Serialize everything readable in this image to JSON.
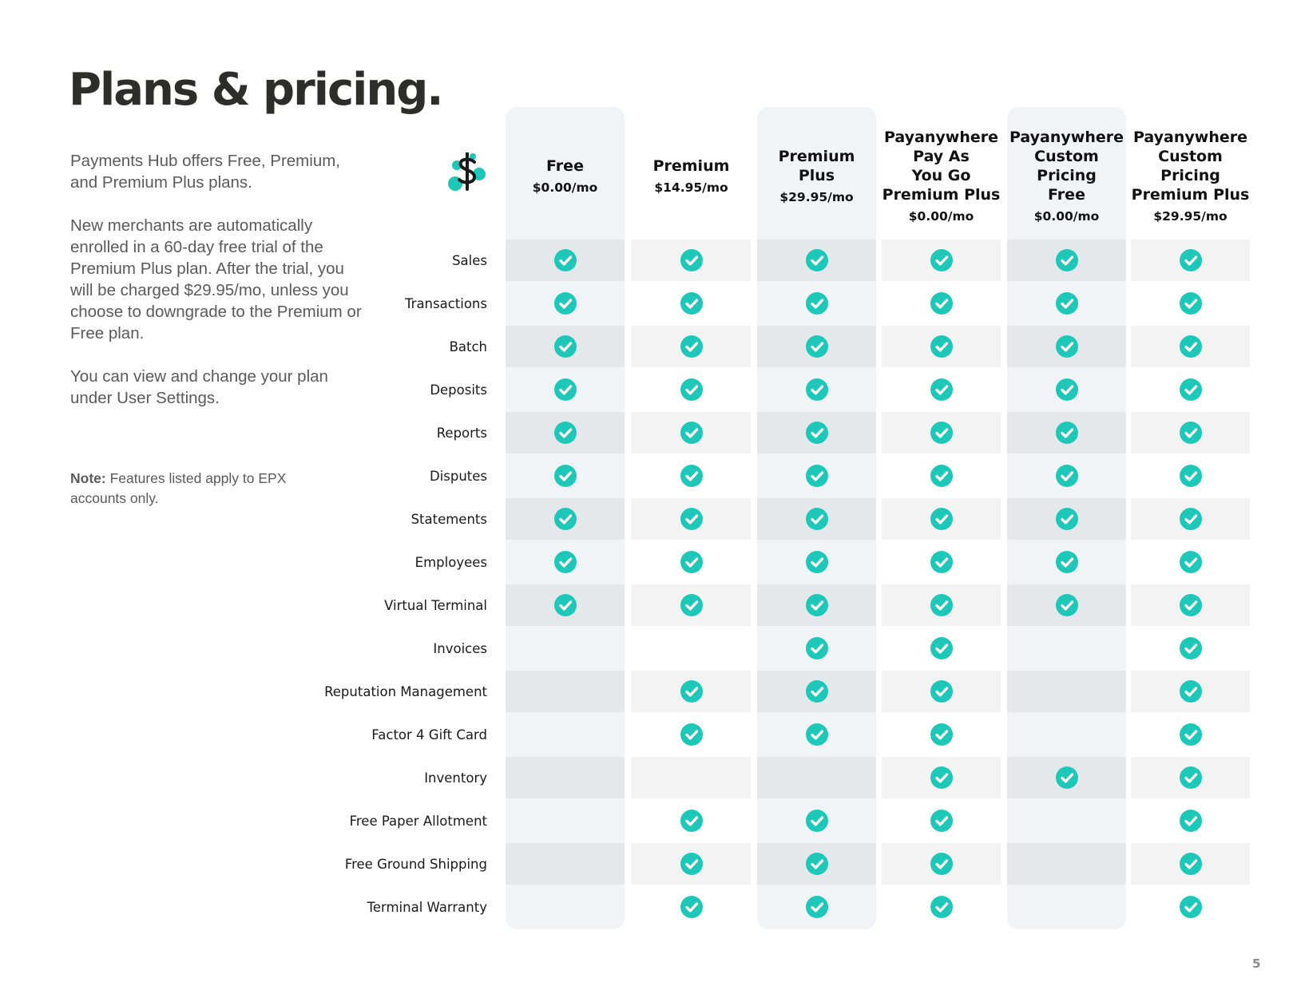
{
  "title": "Plans & pricing.",
  "intro": {
    "p1": "Payments Hub offers Free, Premium, and Premium Plus plans.",
    "p2": "New merchants are automatically enrolled in a 60-day free trial of the Premium Plus plan. After the trial, you will be charged $29.95/mo, unless you choose to downgrade to the Premium or Free plan.",
    "p3": "You can view and change your plan under User Settings."
  },
  "note": {
    "label": "Note:",
    "text": " Features listed apply to EPX accounts only."
  },
  "page_number": "5",
  "logo_icon": "dollar-molecule-icon",
  "colors": {
    "check": "#1ec8b8",
    "title": "#2d2d2b",
    "body_text": "#5a5a5a"
  },
  "plans": [
    {
      "name": "Free",
      "price": "$0.00/mo"
    },
    {
      "name": "Premium",
      "price": "$14.95/mo"
    },
    {
      "name": "Premium\nPlus",
      "price": "$29.95/mo"
    },
    {
      "name": "Payanywhere\nPay As\nYou Go\nPremium Plus",
      "price": "$0.00/mo"
    },
    {
      "name": "Payanywhere\nCustom\nPricing\nFree",
      "price": "$0.00/mo"
    },
    {
      "name": "Payanywhere\nCustom\nPricing\nPremium Plus",
      "price": "$29.95/mo"
    }
  ],
  "features": [
    {
      "label": "Sales",
      "included": [
        true,
        true,
        true,
        true,
        true,
        true
      ]
    },
    {
      "label": "Transactions",
      "included": [
        true,
        true,
        true,
        true,
        true,
        true
      ]
    },
    {
      "label": "Batch",
      "included": [
        true,
        true,
        true,
        true,
        true,
        true
      ]
    },
    {
      "label": "Deposits",
      "included": [
        true,
        true,
        true,
        true,
        true,
        true
      ]
    },
    {
      "label": "Reports",
      "included": [
        true,
        true,
        true,
        true,
        true,
        true
      ]
    },
    {
      "label": "Disputes",
      "included": [
        true,
        true,
        true,
        true,
        true,
        true
      ]
    },
    {
      "label": "Statements",
      "included": [
        true,
        true,
        true,
        true,
        true,
        true
      ]
    },
    {
      "label": "Employees",
      "included": [
        true,
        true,
        true,
        true,
        true,
        true
      ]
    },
    {
      "label": "Virtual Terminal",
      "included": [
        true,
        true,
        true,
        true,
        true,
        true
      ]
    },
    {
      "label": "Invoices",
      "included": [
        false,
        false,
        true,
        true,
        false,
        true
      ]
    },
    {
      "label": "Reputation Management",
      "included": [
        false,
        true,
        true,
        true,
        false,
        true
      ]
    },
    {
      "label": "Factor 4 Gift Card",
      "included": [
        false,
        true,
        true,
        true,
        false,
        true
      ]
    },
    {
      "label": "Inventory",
      "included": [
        false,
        false,
        false,
        true,
        true,
        true
      ]
    },
    {
      "label": "Free Paper Allotment",
      "included": [
        false,
        true,
        true,
        true,
        false,
        true
      ]
    },
    {
      "label": "Free Ground Shipping",
      "included": [
        false,
        true,
        true,
        true,
        false,
        true
      ]
    },
    {
      "label": "Terminal Warranty",
      "included": [
        false,
        true,
        true,
        true,
        false,
        true
      ]
    }
  ]
}
